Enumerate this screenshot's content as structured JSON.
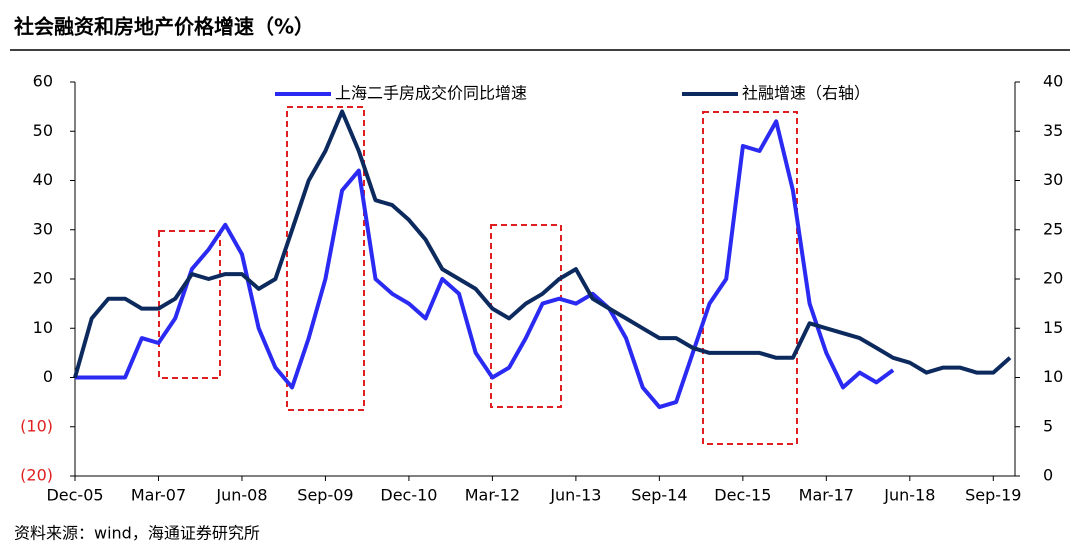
{
  "chart_data": {
    "type": "line",
    "title": "社会融资和房地产价格增速（%）",
    "source": "资料来源：wind，海通证券研究所",
    "categories": [
      "Dec-05",
      null,
      null,
      null,
      null,
      "Mar-07",
      null,
      null,
      null,
      null,
      "Jun-08",
      null,
      null,
      null,
      null,
      "Sep-09",
      null,
      null,
      null,
      null,
      "Dec-10",
      null,
      null,
      null,
      null,
      "Mar-12",
      null,
      null,
      null,
      null,
      "Jun-13",
      null,
      null,
      null,
      null,
      "Sep-14",
      null,
      null,
      null,
      null,
      "Dec-15",
      null,
      null,
      null,
      null,
      "Mar-17",
      null,
      null,
      null,
      null,
      "Jun-18",
      null,
      null,
      null,
      null,
      "Sep-19",
      null
    ],
    "series": [
      {
        "name": "上海二手房成交价同比增速",
        "color": "#2a2af2",
        "axis": "y",
        "values": [
          0,
          0,
          0,
          0,
          8,
          7,
          12,
          22,
          26,
          31,
          25,
          10,
          2,
          -2,
          8,
          20,
          38,
          42,
          20,
          17,
          15,
          12,
          20,
          17,
          5,
          0,
          2,
          8,
          15,
          16,
          15,
          17,
          14,
          8,
          -2,
          -6,
          -5,
          5,
          15,
          20,
          47,
          46,
          52,
          38,
          15,
          5,
          -2,
          1,
          -1,
          1.5,
          null,
          null,
          null,
          null,
          null,
          null,
          null
        ]
      },
      {
        "name": "社融增速（右轴）",
        "color": "#0d2a5e",
        "axis": "y2",
        "values": [
          10,
          16,
          18,
          18,
          17,
          17,
          18,
          20.5,
          20,
          20.5,
          20.5,
          19,
          20,
          25,
          30,
          33,
          37,
          33,
          28,
          27.5,
          26,
          24,
          21,
          20,
          19,
          17,
          16,
          17.5,
          18.5,
          20,
          21,
          18,
          17,
          16,
          15,
          14,
          14,
          13,
          12.5,
          12.5,
          12.5,
          12.5,
          12,
          12,
          15.5,
          15,
          14.5,
          14,
          13,
          12,
          11.5,
          10.5,
          11,
          11,
          10.5,
          10.5,
          12
        ]
      }
    ],
    "ylim": [
      -20,
      60
    ],
    "yticks": [
      {
        "value": -20,
        "label": "(20)"
      },
      {
        "value": -10,
        "label": "(10)"
      },
      0,
      10,
      20,
      30,
      40,
      50,
      60
    ],
    "y2lim": [
      0,
      40
    ],
    "y2ticks": [
      0,
      5,
      10,
      15,
      20,
      25,
      30,
      35,
      40
    ],
    "grid": false
  }
}
